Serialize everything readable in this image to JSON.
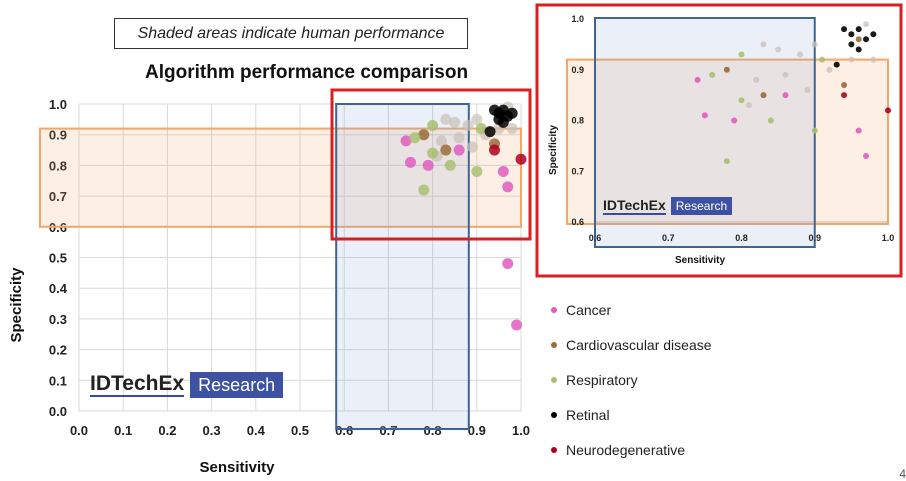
{
  "note": "Shaded areas indicate human performance",
  "title": "Algorithm performance comparison",
  "watermark": {
    "brand": "IDTechEx",
    "tag": "Research"
  },
  "legend": [
    {
      "label": "Cancer",
      "color": "#e05cc0"
    },
    {
      "label": "Cardiovascular disease",
      "color": "#9a6a3a"
    },
    {
      "label": "Respiratory",
      "color": "#a8c070"
    },
    {
      "label": "Retinal",
      "color": "#000000"
    },
    {
      "label": "Neurodegenerative",
      "color": "#b00020"
    }
  ],
  "page_number": "4",
  "colors": {
    "human_sensitivity_region": "#3f6490",
    "human_specificity_region": "#f2a66a",
    "zoom_frame": "#d82020",
    "gridline": "#d9d9d9"
  },
  "chart_data": [
    {
      "type": "scatter",
      "title": "Algorithm performance comparison",
      "xlabel": "Sensitivity",
      "ylabel": "Specificity",
      "xlim": [
        0.0,
        1.0
      ],
      "ylim": [
        0.0,
        1.0
      ],
      "xticks": [
        "0.0",
        "0.1",
        "0.2",
        "0.3",
        "0.4",
        "0.5",
        "0.6",
        "0.7",
        "0.8",
        "0.9",
        "1.0"
      ],
      "yticks": [
        "0.0",
        "0.1",
        "0.2",
        "0.3",
        "0.4",
        "0.5",
        "0.6",
        "0.7",
        "0.8",
        "0.9",
        "1.0"
      ],
      "grid": true,
      "shaded_regions": [
        {
          "axis": "x",
          "range": [
            0.6,
            0.9
          ]
        },
        {
          "axis": "y",
          "range": [
            0.6,
            0.92
          ]
        }
      ],
      "series": [
        {
          "name": "Cancer",
          "points": [
            [
              0.97,
              0.48
            ],
            [
              0.99,
              0.28
            ],
            [
              0.97,
              0.73
            ],
            [
              0.96,
              0.78
            ],
            [
              0.75,
              0.81
            ],
            [
              0.74,
              0.88
            ],
            [
              0.86,
              0.85
            ],
            [
              0.79,
              0.8
            ]
          ]
        },
        {
          "name": "Cardiovascular disease",
          "points": [
            [
              0.94,
              0.87
            ],
            [
              0.96,
              0.96
            ],
            [
              0.83,
              0.85
            ],
            [
              0.78,
              0.9
            ]
          ]
        },
        {
          "name": "Respiratory",
          "points": [
            [
              0.76,
              0.89
            ],
            [
              0.8,
              0.84
            ],
            [
              0.78,
              0.72
            ],
            [
              0.9,
              0.78
            ],
            [
              0.84,
              0.8
            ],
            [
              0.91,
              0.92
            ],
            [
              0.8,
              0.93
            ]
          ]
        },
        {
          "name": "Retinal",
          "points": [
            [
              0.95,
              0.97
            ],
            [
              0.96,
              0.98
            ],
            [
              0.97,
              0.96
            ],
            [
              0.95,
              0.95
            ],
            [
              0.94,
              0.98
            ],
            [
              0.96,
              0.94
            ],
            [
              0.98,
              0.97
            ],
            [
              0.93,
              0.91
            ]
          ]
        },
        {
          "name": "Neurodegenerative",
          "points": [
            [
              1.0,
              0.82
            ],
            [
              0.94,
              0.85
            ]
          ]
        }
      ],
      "extra_points": [
        [
          0.85,
          0.94
        ],
        [
          0.83,
          0.95
        ],
        [
          0.92,
          0.9
        ],
        [
          0.88,
          0.93
        ],
        [
          0.86,
          0.89
        ],
        [
          0.81,
          0.83
        ],
        [
          0.89,
          0.86
        ],
        [
          0.82,
          0.88
        ],
        [
          0.9,
          0.95
        ],
        [
          0.95,
          0.92
        ],
        [
          0.97,
          0.99
        ],
        [
          0.98,
          0.92
        ]
      ]
    },
    {
      "type": "scatter",
      "xlabel": "Sensitivity",
      "ylabel": "Specificity",
      "xlim": [
        0.6,
        1.0
      ],
      "ylim": [
        0.6,
        1.0
      ],
      "xticks": [
        "0.6",
        "0.7",
        "0.8",
        "0.9",
        "1.0"
      ],
      "yticks": [
        "0.6",
        "0.7",
        "0.8",
        "0.9",
        "1.0"
      ],
      "grid": false,
      "shaded_regions": [
        {
          "axis": "x",
          "range": [
            0.6,
            0.9
          ]
        },
        {
          "axis": "y",
          "range": [
            0.6,
            0.92
          ]
        }
      ]
    }
  ]
}
